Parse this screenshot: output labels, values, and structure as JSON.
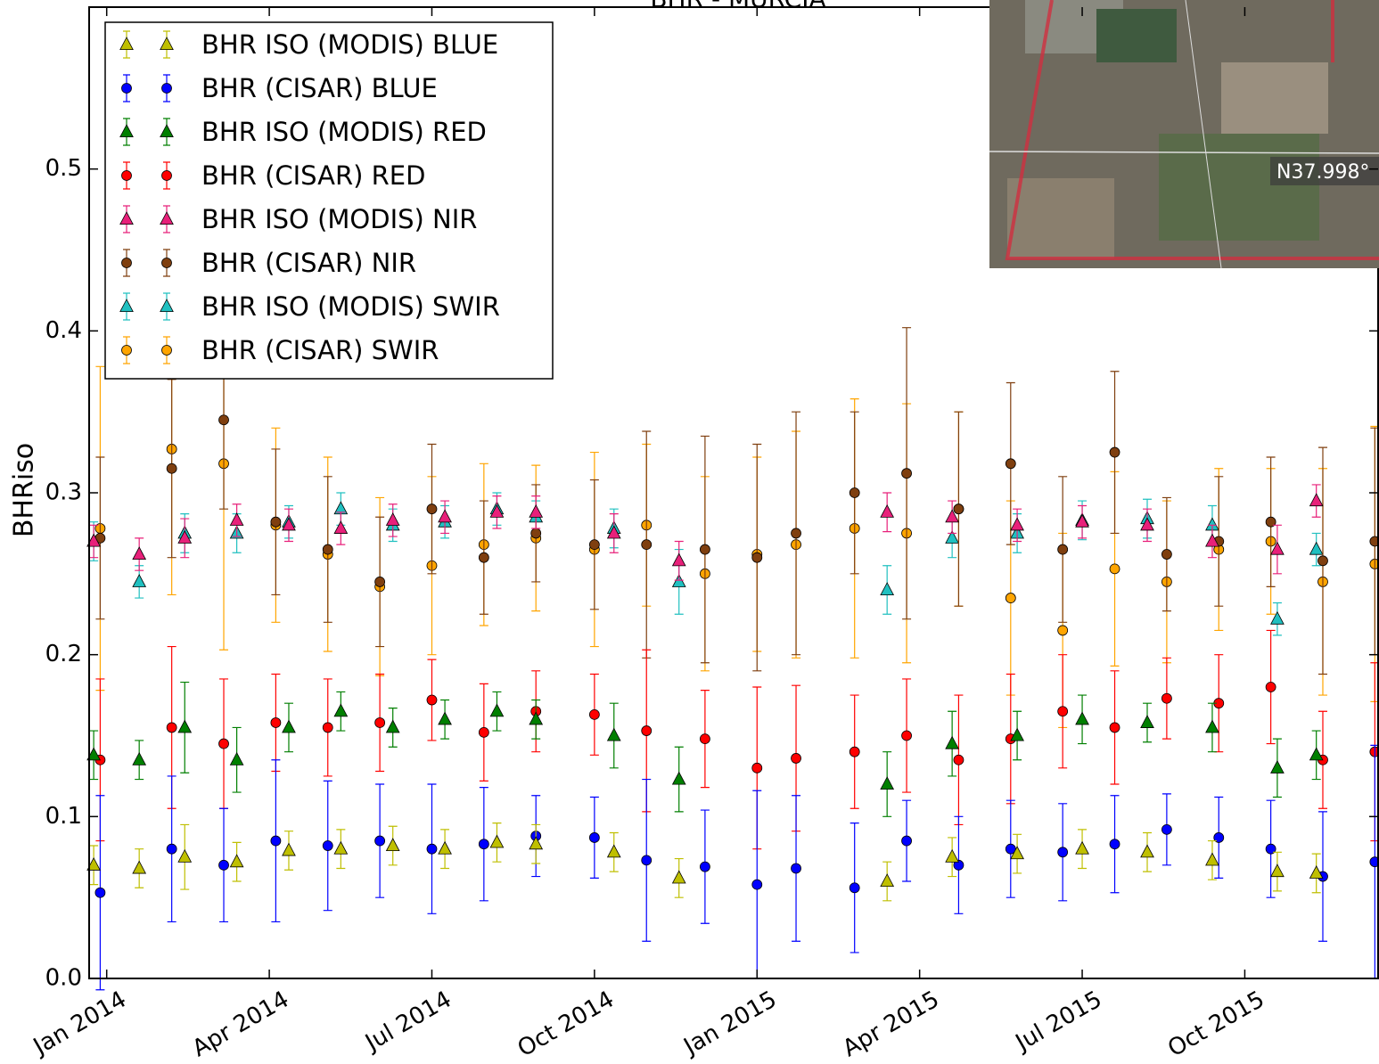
{
  "chart_data": {
    "type": "errorbar-scatter",
    "title": "BHR - MURCIA",
    "y_label": "BHRiso",
    "inset_label": "N37.998°",
    "xlim": [
      2013.973,
      2015.955
    ],
    "ylim": [
      0,
      0.6
    ],
    "xticks": [
      {
        "value": 2014.0,
        "label": "Jan 2014"
      },
      {
        "value": 2014.25,
        "label": "Apr 2014"
      },
      {
        "value": 2014.5,
        "label": "Jul 2014"
      },
      {
        "value": 2014.75,
        "label": "Oct 2014"
      },
      {
        "value": 2015.0,
        "label": "Jan 2015"
      },
      {
        "value": 2015.25,
        "label": "Apr 2015"
      },
      {
        "value": 2015.5,
        "label": "Jul 2015"
      },
      {
        "value": 2015.75,
        "label": "Oct 2015"
      }
    ],
    "yticks": [
      {
        "value": 0,
        "label": "0.0"
      },
      0.1,
      0.2,
      0.3,
      0.4,
      0.5
    ],
    "legend": "upper left",
    "series": [
      {
        "name": "BHR ISO (MODIS) BLUE",
        "color": "#bfbf00",
        "marker": "triangle",
        "x": [
          2013.98,
          2014.05,
          2014.12,
          2014.2,
          2014.28,
          2014.36,
          2014.44,
          2014.52,
          2014.6,
          2014.66,
          2014.78,
          2014.88,
          2015.2,
          2015.3,
          2015.4,
          2015.5,
          2015.6,
          2015.7,
          2015.8,
          2015.86
        ],
        "values": [
          0.07,
          0.068,
          0.075,
          0.072,
          0.079,
          0.08,
          0.082,
          0.08,
          0.084,
          0.083,
          0.078,
          0.062,
          0.06,
          0.075,
          0.077,
          0.08,
          0.078,
          0.073,
          0.066,
          0.065
        ],
        "errors": [
          0.012,
          0.012,
          0.02,
          0.012,
          0.012,
          0.012,
          0.012,
          0.012,
          0.012,
          0.012,
          0.012,
          0.012,
          0.012,
          0.012,
          0.012,
          0.012,
          0.012,
          0.012,
          0.012,
          0.012
        ]
      },
      {
        "name": "BHR (CISAR) BLUE",
        "color": "#0000ff",
        "marker": "circle",
        "x": [
          2013.99,
          2014.1,
          2014.18,
          2014.26,
          2014.34,
          2014.42,
          2014.5,
          2014.58,
          2014.66,
          2014.75,
          2014.83,
          2014.92,
          2015.0,
          2015.06,
          2015.15,
          2015.23,
          2015.31,
          2015.39,
          2015.47,
          2015.55,
          2015.63,
          2015.71,
          2015.79,
          2015.87,
          2015.95
        ],
        "values": [
          0.053,
          0.08,
          0.07,
          0.085,
          0.082,
          0.085,
          0.08,
          0.083,
          0.088,
          0.087,
          0.073,
          0.069,
          0.058,
          0.068,
          0.056,
          0.085,
          0.07,
          0.08,
          0.078,
          0.083,
          0.092,
          0.087,
          0.08,
          0.063,
          0.072
        ],
        "errors": [
          0.06,
          0.045,
          0.035,
          0.05,
          0.04,
          0.035,
          0.04,
          0.035,
          0.025,
          0.025,
          0.05,
          0.035,
          0.058,
          0.045,
          0.04,
          0.025,
          0.03,
          0.03,
          0.03,
          0.03,
          0.022,
          0.025,
          0.03,
          0.04,
          0.072
        ]
      },
      {
        "name": "BHR ISO (MODIS) RED",
        "color": "#007f00",
        "marker": "triangle",
        "x": [
          2013.98,
          2014.05,
          2014.12,
          2014.2,
          2014.28,
          2014.36,
          2014.44,
          2014.52,
          2014.6,
          2014.66,
          2014.78,
          2014.88,
          2015.2,
          2015.3,
          2015.4,
          2015.5,
          2015.6,
          2015.7,
          2015.8,
          2015.86
        ],
        "values": [
          0.138,
          0.135,
          0.155,
          0.135,
          0.155,
          0.165,
          0.155,
          0.16,
          0.165,
          0.16,
          0.15,
          0.123,
          0.12,
          0.145,
          0.15,
          0.16,
          0.158,
          0.155,
          0.13,
          0.138
        ],
        "errors": [
          0.015,
          0.012,
          0.028,
          0.02,
          0.015,
          0.012,
          0.012,
          0.012,
          0.012,
          0.012,
          0.02,
          0.02,
          0.02,
          0.02,
          0.015,
          0.015,
          0.012,
          0.015,
          0.018,
          0.015
        ]
      },
      {
        "name": "BHR (CISAR) RED",
        "color": "#ff0000",
        "marker": "circle",
        "x": [
          2013.99,
          2014.1,
          2014.18,
          2014.26,
          2014.34,
          2014.42,
          2014.5,
          2014.58,
          2014.66,
          2014.75,
          2014.83,
          2014.92,
          2015.0,
          2015.06,
          2015.15,
          2015.23,
          2015.31,
          2015.39,
          2015.47,
          2015.55,
          2015.63,
          2015.71,
          2015.79,
          2015.87,
          2015.95
        ],
        "values": [
          0.135,
          0.155,
          0.145,
          0.158,
          0.155,
          0.158,
          0.172,
          0.152,
          0.165,
          0.163,
          0.153,
          0.148,
          0.13,
          0.136,
          0.14,
          0.15,
          0.135,
          0.148,
          0.165,
          0.155,
          0.173,
          0.17,
          0.18,
          0.135,
          0.14
        ],
        "errors": [
          0.05,
          0.05,
          0.04,
          0.03,
          0.03,
          0.03,
          0.025,
          0.03,
          0.025,
          0.025,
          0.05,
          0.03,
          0.05,
          0.045,
          0.035,
          0.035,
          0.04,
          0.04,
          0.035,
          0.035,
          0.025,
          0.03,
          0.035,
          0.03,
          0.055
        ]
      },
      {
        "name": "BHR ISO (MODIS) NIR",
        "color": "#e8207a",
        "marker": "triangle",
        "x": [
          2013.98,
          2014.05,
          2014.12,
          2014.2,
          2014.28,
          2014.36,
          2014.44,
          2014.52,
          2014.6,
          2014.66,
          2014.78,
          2014.88,
          2015.2,
          2015.3,
          2015.4,
          2015.5,
          2015.6,
          2015.7,
          2015.8,
          2015.86
        ],
        "values": [
          0.27,
          0.262,
          0.272,
          0.283,
          0.28,
          0.278,
          0.283,
          0.285,
          0.288,
          0.288,
          0.275,
          0.258,
          0.288,
          0.285,
          0.28,
          0.282,
          0.28,
          0.27,
          0.265,
          0.295
        ],
        "errors": [
          0.01,
          0.01,
          0.012,
          0.01,
          0.01,
          0.01,
          0.01,
          0.01,
          0.01,
          0.01,
          0.012,
          0.012,
          0.012,
          0.01,
          0.01,
          0.01,
          0.01,
          0.01,
          0.015,
          0.01
        ]
      },
      {
        "name": "BHR (CISAR) NIR",
        "color": "#7f3f0f",
        "marker": "circle",
        "x": [
          2013.99,
          2014.1,
          2014.18,
          2014.26,
          2014.34,
          2014.42,
          2014.5,
          2014.58,
          2014.66,
          2014.75,
          2014.83,
          2014.92,
          2015.0,
          2015.06,
          2015.15,
          2015.23,
          2015.31,
          2015.39,
          2015.47,
          2015.55,
          2015.63,
          2015.71,
          2015.79,
          2015.87,
          2015.95
        ],
        "values": [
          0.272,
          0.315,
          0.345,
          0.282,
          0.265,
          0.245,
          0.29,
          0.26,
          0.275,
          0.268,
          0.268,
          0.265,
          0.26,
          0.275,
          0.3,
          0.312,
          0.29,
          0.318,
          0.265,
          0.325,
          0.262,
          0.27,
          0.282,
          0.258,
          0.27
        ],
        "errors": [
          0.05,
          0.055,
          0.055,
          0.045,
          0.045,
          0.04,
          0.04,
          0.035,
          0.03,
          0.04,
          0.07,
          0.07,
          0.07,
          0.075,
          0.05,
          0.09,
          0.06,
          0.05,
          0.045,
          0.05,
          0.035,
          0.04,
          0.04,
          0.07,
          0.07
        ]
      },
      {
        "name": "BHR ISO (MODIS) SWIR",
        "color": "#20c0c0",
        "marker": "triangle",
        "x": [
          2013.98,
          2014.05,
          2014.12,
          2014.2,
          2014.28,
          2014.36,
          2014.44,
          2014.52,
          2014.6,
          2014.66,
          2014.78,
          2014.88,
          2015.2,
          2015.3,
          2015.4,
          2015.5,
          2015.6,
          2015.7,
          2015.8,
          2015.86
        ],
        "values": [
          0.27,
          0.245,
          0.275,
          0.275,
          0.282,
          0.29,
          0.28,
          0.282,
          0.29,
          0.285,
          0.278,
          0.245,
          0.24,
          0.272,
          0.275,
          0.283,
          0.284,
          0.28,
          0.222,
          0.265
        ],
        "errors": [
          0.012,
          0.01,
          0.012,
          0.012,
          0.01,
          0.01,
          0.01,
          0.01,
          0.01,
          0.01,
          0.012,
          0.02,
          0.015,
          0.012,
          0.012,
          0.012,
          0.012,
          0.012,
          0.01,
          0.01
        ]
      },
      {
        "name": "BHR (CISAR) SWIR",
        "color": "#ffa500",
        "marker": "circle",
        "x": [
          2013.99,
          2014.1,
          2014.18,
          2014.26,
          2014.34,
          2014.42,
          2014.5,
          2014.58,
          2014.66,
          2014.75,
          2014.83,
          2014.92,
          2015.0,
          2015.06,
          2015.15,
          2015.23,
          2015.31,
          2015.39,
          2015.47,
          2015.55,
          2015.63,
          2015.71,
          2015.79,
          2015.87,
          2015.95
        ],
        "values": [
          0.278,
          0.327,
          0.318,
          0.28,
          0.262,
          0.242,
          0.255,
          0.268,
          0.272,
          0.265,
          0.28,
          0.25,
          0.262,
          0.268,
          0.278,
          0.275,
          0.29,
          0.235,
          0.215,
          0.253,
          0.245,
          0.265,
          0.27,
          0.245,
          0.256
        ],
        "errors": [
          0.1,
          0.09,
          0.115,
          0.06,
          0.06,
          0.055,
          0.055,
          0.05,
          0.045,
          0.06,
          0.05,
          0.06,
          0.06,
          0.07,
          0.08,
          0.08,
          0.06,
          0.06,
          0.06,
          0.06,
          0.05,
          0.05,
          0.045,
          0.07,
          0.085
        ]
      }
    ]
  }
}
